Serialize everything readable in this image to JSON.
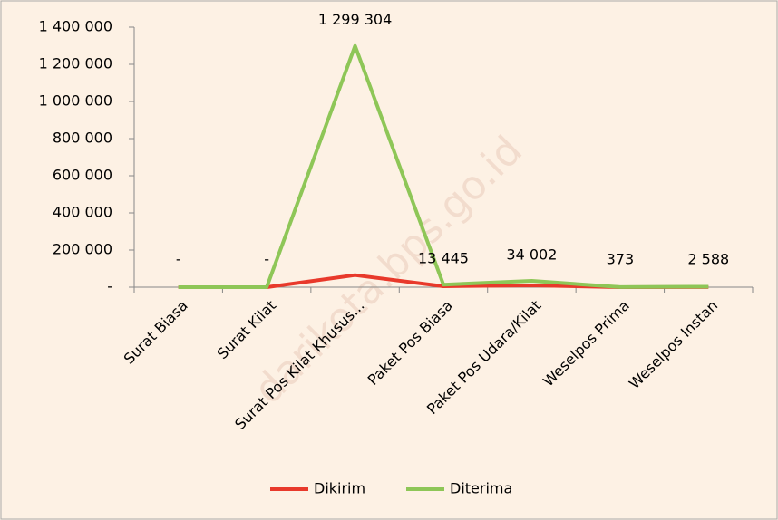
{
  "chart_data": {
    "type": "line",
    "categories": [
      "Surat Biasa",
      "Surat Kilat",
      "Surat Pos Kilat Khusus...",
      "Paket Pos Biasa",
      "Paket Pos Udara/Kilat",
      "Weselpos Prima",
      "Weselpos Instan"
    ],
    "series": [
      {
        "name": "Dikirim",
        "color": "#e8392b",
        "values": [
          0,
          0,
          65000,
          5000,
          10000,
          300,
          500
        ]
      },
      {
        "name": "Diterima",
        "color": "#8ec657",
        "values": [
          0,
          0,
          1299304,
          13445,
          34002,
          373,
          2588
        ],
        "value_labels": [
          "-",
          "-",
          "1 299 304",
          "13 445",
          "34 002",
          "373",
          "2 588"
        ]
      }
    ],
    "ylim": [
      0,
      1400000
    ],
    "yticks": [
      {
        "value": 0,
        "label": "-"
      },
      {
        "value": 200000,
        "label": "200 000"
      },
      {
        "value": 400000,
        "label": "400 000"
      },
      {
        "value": 600000,
        "label": "600 000"
      },
      {
        "value": 800000,
        "label": "800 000"
      },
      {
        "value": 1000000,
        "label": "1 000 000"
      },
      {
        "value": 1200000,
        "label": "1 200 000"
      },
      {
        "value": 1400000,
        "label": "1 400 000"
      }
    ],
    "legend": "bottom",
    "watermark": "darikota.bps.go.id"
  }
}
